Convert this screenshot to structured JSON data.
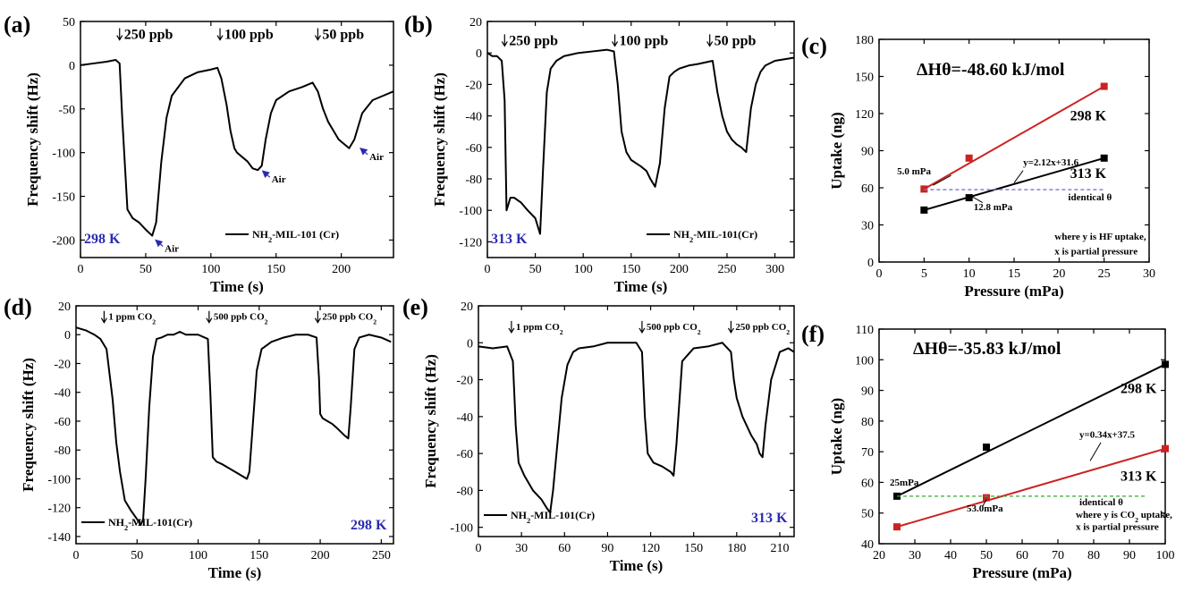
{
  "colors": {
    "axis": "#000000",
    "trace": "#000000",
    "red": "#cc2222",
    "blue": "#2b2bb0",
    "ref_blue": "#7777cc",
    "ref_green": "#33aa33"
  },
  "chart_data": [
    {
      "id": "a",
      "label": "(a)",
      "type": "line",
      "xlabel": "Time (s)",
      "ylabel": "Frequency shift (Hz)",
      "xlim": [
        0,
        240
      ],
      "ylim": [
        -220,
        50
      ],
      "xticks": [
        0,
        50,
        100,
        150,
        200
      ],
      "yticks": [
        50,
        0,
        -50,
        -100,
        -150,
        -200
      ],
      "xticklabels": [
        "0",
        "50",
        "100",
        "150",
        "200"
      ],
      "yticklabels": [
        "50",
        "0",
        "-50",
        "-100",
        "-150",
        "-200"
      ],
      "legend": "NH₂-MIL-101 (Cr)",
      "temperature": "298 K",
      "series": [
        {
          "x": [
            0,
            10,
            20,
            27,
            30,
            32,
            36,
            40,
            45,
            50,
            55,
            58,
            62,
            66,
            70,
            80,
            90,
            100,
            105,
            108,
            112,
            115,
            118,
            120,
            124,
            128,
            132,
            136,
            139,
            142,
            146,
            150,
            160,
            170,
            178,
            182,
            186,
            190,
            194,
            198,
            202,
            206,
            210,
            216,
            224,
            232,
            240
          ],
          "y": [
            0,
            2,
            4,
            6,
            2,
            -60,
            -165,
            -175,
            -180,
            -188,
            -195,
            -180,
            -110,
            -60,
            -35,
            -15,
            -8,
            -5,
            -3,
            -15,
            -45,
            -75,
            -95,
            -100,
            -105,
            -110,
            -118,
            -120,
            -115,
            -85,
            -55,
            -40,
            -30,
            -25,
            -20,
            -30,
            -50,
            -65,
            -75,
            -85,
            -90,
            -95,
            -85,
            -55,
            -40,
            -35,
            -30
          ]
        }
      ],
      "annotations": [
        {
          "text": "250 ppb",
          "x": 30,
          "y": 30,
          "arrow": true
        },
        {
          "text": "100 ppb",
          "x": 107,
          "y": 30,
          "arrow": true
        },
        {
          "text": "50 ppb",
          "x": 182,
          "y": 30,
          "arrow": true
        },
        {
          "text": "Air",
          "x": 57,
          "y": -199,
          "kind": "air"
        },
        {
          "text": "Air",
          "x": 139,
          "y": -120,
          "kind": "air"
        },
        {
          "text": "Air",
          "x": 214,
          "y": -94,
          "kind": "air"
        }
      ]
    },
    {
      "id": "b",
      "label": "(b)",
      "type": "line",
      "xlabel": "Time (s)",
      "ylabel": "Frequency shift (Hz)",
      "xlim": [
        0,
        320
      ],
      "ylim": [
        -130,
        20
      ],
      "xticks": [
        0,
        50,
        100,
        150,
        200,
        250,
        300
      ],
      "yticks": [
        20,
        0,
        -20,
        -40,
        -60,
        -80,
        -100,
        -120
      ],
      "xticklabels": [
        "0",
        "50",
        "100",
        "150",
        "200",
        "250",
        "300"
      ],
      "yticklabels": [
        "20",
        "0",
        "-20",
        "-40",
        "-60",
        "-80",
        "-100",
        "-120"
      ],
      "legend": "NH₂-MIL-101(Cr)",
      "temperature": "313 K",
      "series": [
        {
          "x": [
            0,
            5,
            10,
            15,
            18,
            20,
            24,
            28,
            35,
            42,
            50,
            55,
            58,
            62,
            66,
            72,
            80,
            95,
            110,
            125,
            132,
            136,
            140,
            145,
            150,
            155,
            160,
            166,
            170,
            175,
            180,
            185,
            190,
            195,
            200,
            210,
            220,
            235,
            240,
            245,
            250,
            255,
            260,
            265,
            270,
            275,
            280,
            285,
            290,
            300,
            310,
            320
          ],
          "y": [
            0,
            -2,
            -2,
            -5,
            -30,
            -100,
            -92,
            -92,
            -95,
            -100,
            -105,
            -115,
            -75,
            -25,
            -10,
            -5,
            -2,
            0,
            1,
            2,
            1,
            -20,
            -50,
            -63,
            -68,
            -70,
            -72,
            -75,
            -80,
            -85,
            -70,
            -35,
            -15,
            -12,
            -10,
            -8,
            -7,
            -5,
            -25,
            -40,
            -50,
            -55,
            -58,
            -60,
            -63,
            -35,
            -20,
            -12,
            -8,
            -5,
            -4,
            -3
          ]
        }
      ],
      "annotations": [
        {
          "text": "250 ppb",
          "x": 18,
          "y": 5,
          "arrow": true
        },
        {
          "text": "100 ppb",
          "x": 133,
          "y": 5,
          "arrow": true
        },
        {
          "text": "50 ppb",
          "x": 232,
          "y": 5,
          "arrow": true
        }
      ]
    },
    {
      "id": "c",
      "label": "(c)",
      "type": "scatter",
      "xlabel": "Pressure (mPa)",
      "ylabel": "Uptake (ng)",
      "xlim": [
        0,
        30
      ],
      "ylim": [
        0,
        180
      ],
      "xticks": [
        0,
        5,
        10,
        15,
        20,
        25,
        30
      ],
      "yticks": [
        0,
        30,
        60,
        90,
        120,
        150,
        180
      ],
      "xticklabels": [
        "0",
        "5",
        "10",
        "15",
        "20",
        "25",
        "30"
      ],
      "yticklabels": [
        "0",
        "30",
        "60",
        "90",
        "120",
        "150",
        "180"
      ],
      "series": [
        {
          "name": "298 K",
          "color": "#cc2222",
          "x": [
            5,
            10,
            25
          ],
          "y": [
            59,
            84,
            142
          ],
          "fit": [
            [
              5,
              59
            ],
            [
              25,
              142
            ]
          ]
        },
        {
          "name": "313 K",
          "color": "#000000",
          "x": [
            5,
            10,
            25
          ],
          "y": [
            42,
            52,
            84
          ],
          "fit": [
            [
              5,
              42
            ],
            [
              25,
              84
            ]
          ]
        }
      ],
      "reference_line": {
        "y": 58.5,
        "x": [
          5,
          25
        ],
        "color": "#7777cc"
      },
      "enthalpy": "ΔHθ=-48.60 kJ/mol",
      "annotations": [
        {
          "text": "5.0 mPa",
          "x": 2,
          "y": 71
        },
        {
          "text": "y=2.12x+31.6",
          "x": 16,
          "y": 78
        },
        {
          "text": "12.8 mPa",
          "x": 10.5,
          "y": 42
        },
        {
          "text": "identical θ",
          "x": 21,
          "y": 50
        },
        {
          "text": "where y is HF uptake,",
          "x": 19.5,
          "y": 18
        },
        {
          "text": "x is partial pressure",
          "x": 19.5,
          "y": 6
        }
      ]
    },
    {
      "id": "d",
      "label": "(d)",
      "type": "line",
      "xlabel": "Time (s)",
      "ylabel": "Frequency shift (Hz)",
      "xlim": [
        0,
        260
      ],
      "ylim": [
        -145,
        20
      ],
      "xticks": [
        0,
        50,
        100,
        150,
        200,
        250
      ],
      "yticks": [
        20,
        0,
        -20,
        -40,
        -60,
        -80,
        -100,
        -120,
        -140
      ],
      "xticklabels": [
        "0",
        "50",
        "100",
        "150",
        "200",
        "250"
      ],
      "yticklabels": [
        "20",
        "0",
        "-20",
        "-40",
        "-60",
        "-80",
        "-100",
        "-120",
        "-140"
      ],
      "legend": "NH₂-MIL-101(Cr)",
      "temperature": "298 K",
      "series": [
        {
          "x": [
            0,
            8,
            15,
            20,
            25,
            30,
            33,
            36,
            38,
            40,
            45,
            50,
            53,
            55,
            57,
            60,
            63,
            66,
            70,
            75,
            80,
            85,
            90,
            100,
            108,
            110,
            112,
            115,
            120,
            130,
            140,
            142,
            145,
            148,
            152,
            160,
            170,
            180,
            190,
            197,
            199,
            200,
            202,
            206,
            210,
            214,
            220,
            223,
            225,
            228,
            232,
            240,
            250,
            258
          ],
          "y": [
            5,
            3,
            0,
            -3,
            -10,
            -45,
            -75,
            -95,
            -105,
            -115,
            -122,
            -128,
            -132,
            -128,
            -100,
            -50,
            -15,
            -3,
            -2,
            0,
            0,
            2,
            0,
            0,
            -3,
            -40,
            -85,
            -88,
            -90,
            -95,
            -100,
            -95,
            -60,
            -25,
            -10,
            -5,
            -2,
            0,
            0,
            -2,
            -30,
            -55,
            -58,
            -60,
            -62,
            -65,
            -70,
            -72,
            -50,
            -10,
            -2,
            0,
            -2,
            -5
          ]
        }
      ],
      "annotations": [
        {
          "text": "1 ppm CO₂",
          "x": 23,
          "y": 9,
          "arrow": true
        },
        {
          "text": "500 ppb  CO₂",
          "x": 109,
          "y": 9,
          "arrow": true
        },
        {
          "text": "250 ppb  CO₂",
          "x": 198,
          "y": 9,
          "arrow": true
        }
      ]
    },
    {
      "id": "e",
      "label": "(e)",
      "type": "line",
      "xlabel": "Time (s)",
      "ylabel": "Frequency shift (Hz)",
      "xlim": [
        0,
        220
      ],
      "ylim": [
        -105,
        20
      ],
      "xticks": [
        0,
        30,
        60,
        90,
        120,
        150,
        180,
        210
      ],
      "yticks": [
        20,
        0,
        -20,
        -40,
        -60,
        -80,
        -100
      ],
      "xticklabels": [
        "0",
        "30",
        "60",
        "90",
        "120",
        "150",
        "180",
        "210"
      ],
      "yticklabels": [
        "20",
        "0",
        "-20",
        "-40",
        "-60",
        "-80",
        "-100"
      ],
      "legend": "NH₂-MIL-101(Cr)",
      "temperature": "313 K",
      "series": [
        {
          "x": [
            0,
            10,
            20,
            24,
            26,
            28,
            32,
            38,
            44,
            48,
            50,
            52,
            55,
            58,
            62,
            66,
            70,
            80,
            90,
            100,
            110,
            114,
            116,
            118,
            122,
            128,
            134,
            136,
            138,
            142,
            150,
            160,
            170,
            176,
            178,
            180,
            184,
            190,
            194,
            196,
            198,
            200,
            204,
            210,
            216,
            220
          ],
          "y": [
            -2,
            -3,
            -2,
            -10,
            -45,
            -65,
            -72,
            -80,
            -85,
            -90,
            -92,
            -80,
            -55,
            -30,
            -12,
            -5,
            -3,
            -2,
            0,
            0,
            0,
            -5,
            -40,
            -60,
            -65,
            -67,
            -70,
            -72,
            -55,
            -10,
            -3,
            -2,
            0,
            -5,
            -20,
            -30,
            -40,
            -50,
            -55,
            -60,
            -62,
            -45,
            -20,
            -5,
            -3,
            -5
          ]
        }
      ],
      "annotations": [
        {
          "text": "1 ppm CO₂",
          "x": 23,
          "y": 6,
          "arrow": true
        },
        {
          "text": "500 ppb  CO₂",
          "x": 114,
          "y": 6,
          "arrow": true
        },
        {
          "text": "250 ppb  CO₂",
          "x": 176,
          "y": 6,
          "arrow": true
        }
      ]
    },
    {
      "id": "f",
      "label": "(f)",
      "type": "scatter",
      "xlabel": "Pressure (mPa)",
      "ylabel": "Uptake (ng)",
      "xlim": [
        20,
        100
      ],
      "ylim": [
        40,
        110
      ],
      "xticks": [
        20,
        30,
        40,
        50,
        60,
        70,
        80,
        90,
        100
      ],
      "yticks": [
        40,
        50,
        60,
        70,
        80,
        90,
        100,
        110
      ],
      "xticklabels": [
        "20",
        "30",
        "40",
        "50",
        "60",
        "70",
        "80",
        "90",
        "100"
      ],
      "yticklabels": [
        "40",
        "50",
        "60",
        "70",
        "80",
        "90",
        "100",
        "110"
      ],
      "series": [
        {
          "name": "298 K",
          "color": "#000000",
          "x": [
            25,
            50,
            100
          ],
          "y": [
            55.5,
            71.5,
            98.5
          ],
          "fit": [
            [
              25,
              55.5
            ],
            [
              100,
              98.5
            ]
          ]
        },
        {
          "name": "313 K",
          "color": "#cc2222",
          "x": [
            25,
            50,
            100
          ],
          "y": [
            45.5,
            55,
            71
          ],
          "fit": [
            [
              25,
              45.5
            ],
            [
              100,
              71
            ]
          ]
        }
      ],
      "reference_line": {
        "y": 55.5,
        "x": [
          25,
          95
        ],
        "color": "#33aa33"
      },
      "enthalpy": "ΔHθ=-35.83 kJ/mol",
      "annotations": [
        {
          "text": "25mPa",
          "x": 23,
          "y": 59
        },
        {
          "text": "y=0.34x+37.5",
          "x": 76,
          "y": 74.5
        },
        {
          "text": "53.0mPa",
          "x": 44.5,
          "y": 50.5
        },
        {
          "text": "identical θ",
          "x": 76,
          "y": 52.5
        },
        {
          "text": "where y is CO₂ uptake,",
          "x": 75,
          "y": 48.5
        },
        {
          "text": "x is partial pressure",
          "x": 75,
          "y": 44.5
        }
      ]
    }
  ]
}
